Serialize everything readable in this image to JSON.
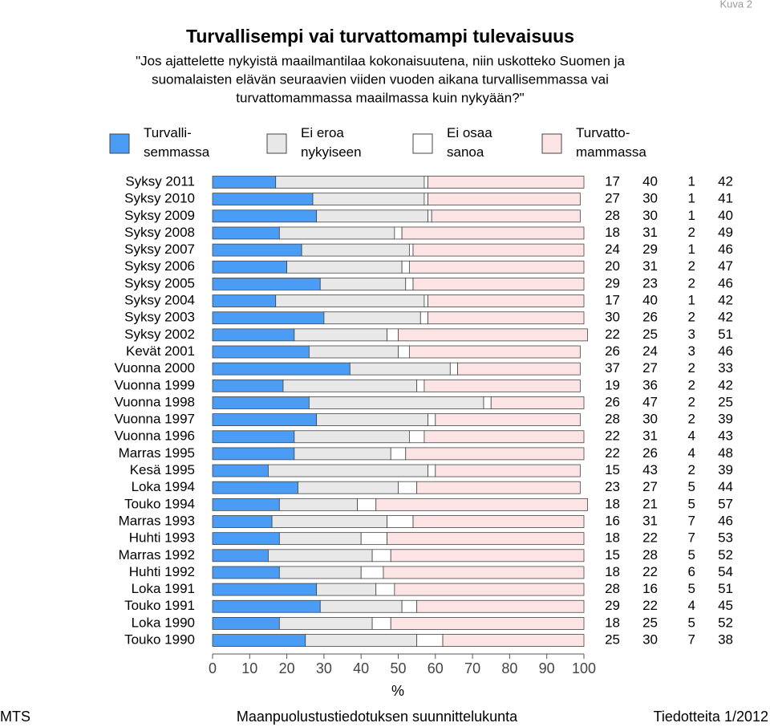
{
  "page_label": "Kuva 2",
  "chart_data": {
    "type": "stacked-bar-horizontal",
    "title": "Turvallisempi vai turvattomampi tulevaisuus",
    "subtitle": [
      "\"Jos ajattelette nykyistä maailmantilaa kokonaisuutena, niin uskotteko Suomen ja",
      "suomalaisten elävän seuraavien viiden vuoden aikana turvallisemmassa vai",
      "turvattomammassa maailmassa kuin nykyään?\""
    ],
    "categories": [
      "Syksy 2011",
      "Syksy 2010",
      "Syksy 2009",
      "Syksy 2008",
      "Syksy 2007",
      "Syksy 2006",
      "Syksy 2005",
      "Syksy 2004",
      "Syksy 2003",
      "Syksy 2002",
      "Kevät 2001",
      "Vuonna 2000",
      "Vuonna 1999",
      "Vuonna 1998",
      "Vuonna 1997",
      "Vuonna 1996",
      "Marras 1995",
      "Kesä 1995",
      "Loka 1994",
      "Touko 1994",
      "Marras 1993",
      "Huhti 1993",
      "Marras 1992",
      "Huhti 1992",
      "Loka 1991",
      "Touko 1991",
      "Loka 1990",
      "Touko 1990"
    ],
    "series": [
      {
        "name": "Turvalli-\nsemmassa",
        "color": "#4a9cf5",
        "values": [
          17,
          27,
          28,
          18,
          24,
          20,
          29,
          17,
          30,
          22,
          26,
          37,
          19,
          26,
          28,
          22,
          22,
          15,
          23,
          18,
          16,
          18,
          15,
          18,
          28,
          29,
          18,
          25
        ]
      },
      {
        "name": "Ei eroa\nnykyiseen",
        "color": "#e8e8e8",
        "values": [
          40,
          30,
          30,
          31,
          29,
          31,
          23,
          40,
          26,
          25,
          24,
          27,
          36,
          47,
          30,
          31,
          26,
          43,
          27,
          21,
          31,
          22,
          28,
          22,
          16,
          22,
          25,
          30
        ]
      },
      {
        "name": "Ei osaa\nsanoa",
        "color": "#ffffff",
        "values": [
          1,
          1,
          1,
          2,
          1,
          2,
          2,
          1,
          2,
          3,
          3,
          2,
          2,
          2,
          2,
          4,
          4,
          2,
          5,
          5,
          7,
          7,
          5,
          6,
          5,
          4,
          5,
          7
        ]
      },
      {
        "name": "Turvatto-\nmammassa",
        "color": "#fde4e4",
        "values": [
          42,
          41,
          40,
          49,
          46,
          47,
          46,
          42,
          42,
          51,
          46,
          33,
          42,
          25,
          39,
          43,
          48,
          39,
          44,
          57,
          46,
          53,
          52,
          54,
          51,
          45,
          52,
          38
        ]
      }
    ],
    "xlim": [
      0,
      100
    ],
    "xticks": [
      0,
      10,
      20,
      30,
      40,
      50,
      60,
      70,
      80,
      90,
      100
    ],
    "xlabel": "%"
  },
  "footer": {
    "left": "MTS",
    "center": "Maanpuolustustiedotuksen suunnittelukunta",
    "right": "Tiedotteita 1/2012"
  }
}
